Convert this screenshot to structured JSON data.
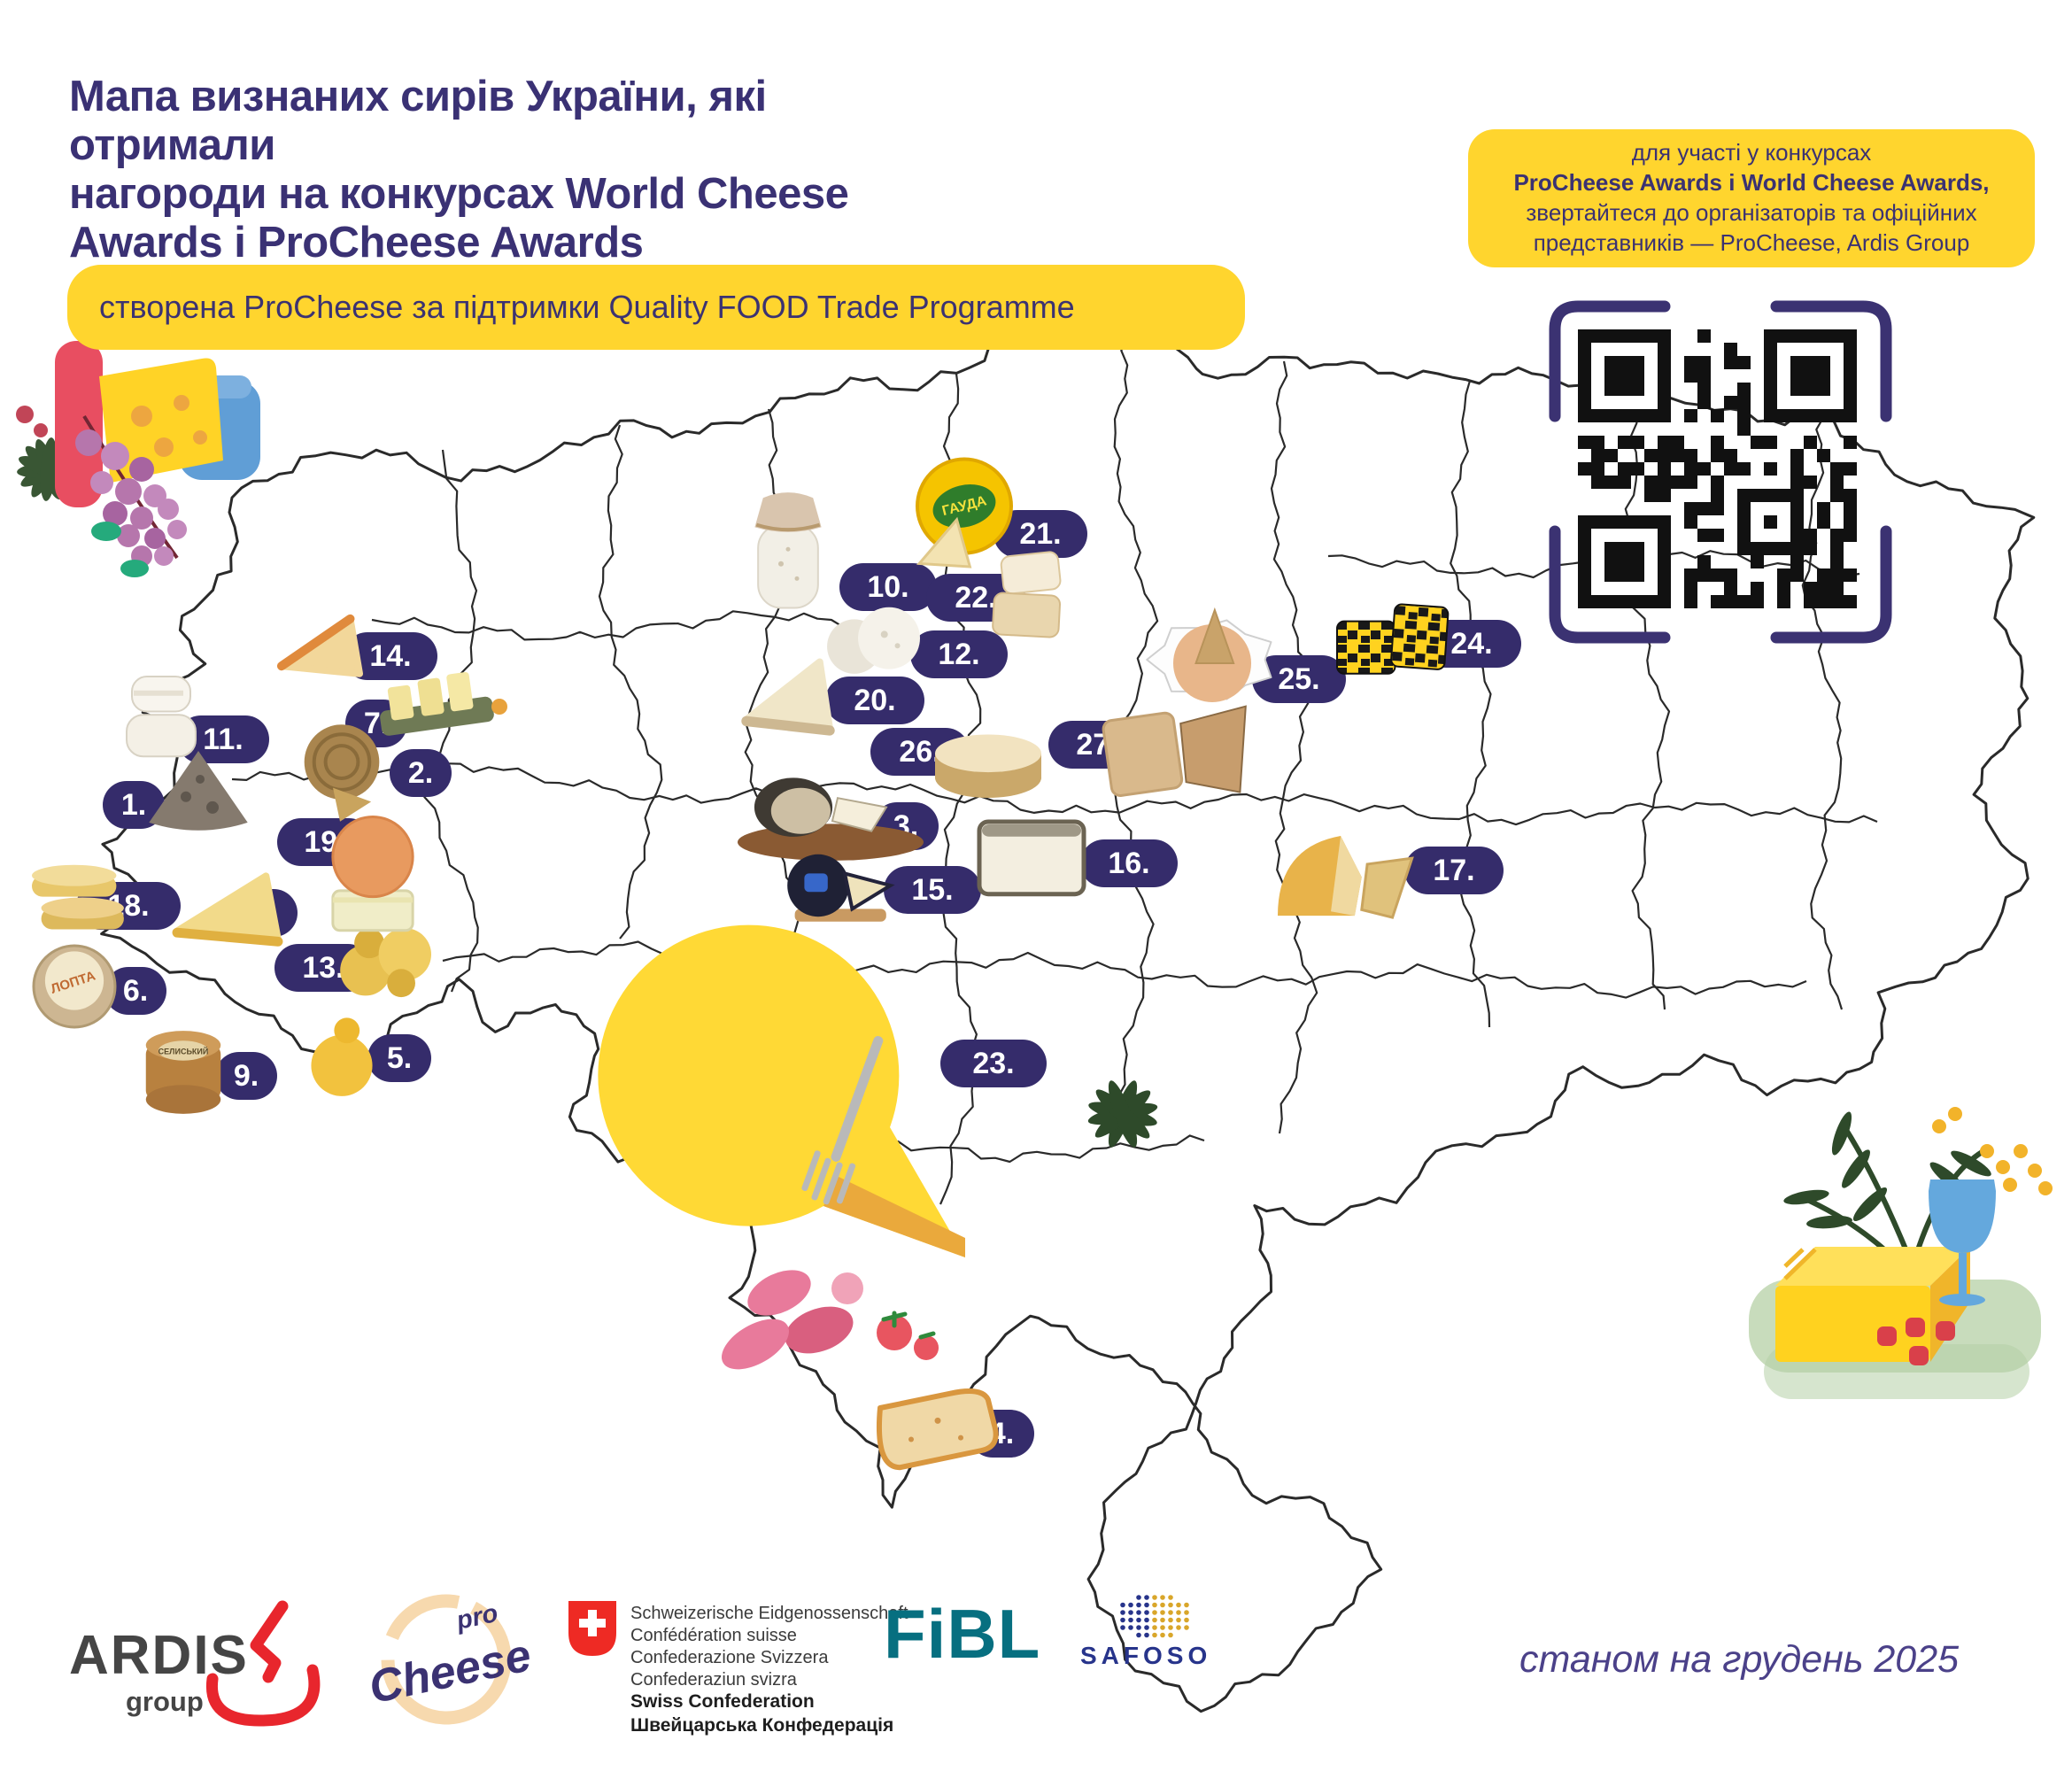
{
  "page": {
    "type": "infographic-map",
    "language": "uk",
    "country": "Ukraine"
  },
  "colors": {
    "accent_navy": "#3b3272",
    "pill_navy": "#352c6b",
    "banner_yellow": "#ffd52e",
    "map_stroke": "#2a2a2a",
    "fibl_teal": "#076f80",
    "safoso_blue": "#27348b",
    "swiss_red": "#ee2a24",
    "ardis_red": "#e8262d",
    "ardis_gray": "#454545",
    "procheese_peach": "#f7d9ae",
    "date_color": "#4b4189"
  },
  "header": {
    "title_lines": [
      "Мапа визнаних сирів України, які отримали",
      "нагороди на конкурсах World Cheese",
      "Awards і ProCheese Awards"
    ],
    "badge": "створена ProCheese за підтримки Quality FOOD Trade Programme"
  },
  "info_box": {
    "lines": [
      "для участі у конкурсах",
      "ProCheese Awards і World Cheese Awards,",
      "звертайтеся до організаторів та офіційних",
      "представників — ProCheese, Ardis Group"
    ],
    "bold_line_index": 1
  },
  "markers": [
    {
      "label": "1.",
      "photo": "stone-ripened-cone-cheese"
    },
    {
      "label": "2.",
      "photo": "basket-weave-aged-wheel"
    },
    {
      "label": "3.",
      "photo": "cheese-board-with-dark-rind-wheel-and-wedge"
    },
    {
      "label": "4.",
      "photo": "young-gouda-wedge"
    },
    {
      "label": "5.",
      "photo": "smoked-caciocavallo-bell"
    },
    {
      "label": "6.",
      "photo": "cloth-wrapped-wheel",
      "photo_label": "ЛОПТА"
    },
    {
      "label": "7.",
      "photo": "sliced-hard-cheese-on-board"
    },
    {
      "label": "8.",
      "photo": "semi-hard-yellow-wedge"
    },
    {
      "label": "9.",
      "photo": "aged-brown-wheel",
      "photo_label": "СЕЛИСЬКИЙ"
    },
    {
      "label": "10.",
      "photo": "fermented-dairy-jar-with-paper-lid"
    },
    {
      "label": "11.",
      "photo": "white-bloomy-rind-rounds"
    },
    {
      "label": "12.",
      "photo": "mold-ripened-white-balls"
    },
    {
      "label": "13.",
      "photo": "knotted-smoked-cheese-pair"
    },
    {
      "label": "14.",
      "photo": "orange-rind-alpine-wedge"
    },
    {
      "label": "15.",
      "photo": "black-wax-wheel-with-wedges"
    },
    {
      "label": "16.",
      "photo": "ash-rind-square-cheese"
    },
    {
      "label": "17.",
      "photo": "aged-gouda-wedges"
    },
    {
      "label": "18.",
      "photo": "smoked-wheel-duo-with-wedge"
    },
    {
      "label": "19.",
      "photo": "smoked-round-on-pale-wedge"
    },
    {
      "label": "20.",
      "photo": "wrinkled-rind-cream-wedge"
    },
    {
      "label": "21.",
      "photo": "gauda-wheel-with-green-label",
      "photo_label": "ГАУДА"
    },
    {
      "label": "22.",
      "photo": "washed-rind-cream-blocks"
    },
    {
      "label": "23.",
      "photo": ""
    },
    {
      "label": "24.",
      "photo": "black-and-yellow-marbled-cheese"
    },
    {
      "label": "25.",
      "photo": "soft-washed-rind-wheel-in-crinkled-paper"
    },
    {
      "label": "26.",
      "photo": "alpine-style-big-wheel"
    },
    {
      "label": "27.",
      "photo": "aged-tan-slices-and-wedge"
    }
  ],
  "footer": {
    "ardis": {
      "wordmark": "ARDIS",
      "sub": "group"
    },
    "procheese": {
      "pro": "pro",
      "wordmark": "Cheese"
    },
    "swiss": {
      "small_lines": [
        "Schweizerische Eidgenossenschaft",
        "Confédération suisse",
        "Confederazione Svizzera",
        "Confederaziun svizra"
      ],
      "bold_lines": [
        "Swiss Confederation",
        "Швейцарська Конфедерація"
      ]
    },
    "fibl_wordmark": "FiBL",
    "safoso_wordmark": "SAFOSO",
    "date_note": "станом на грудень 2025"
  }
}
